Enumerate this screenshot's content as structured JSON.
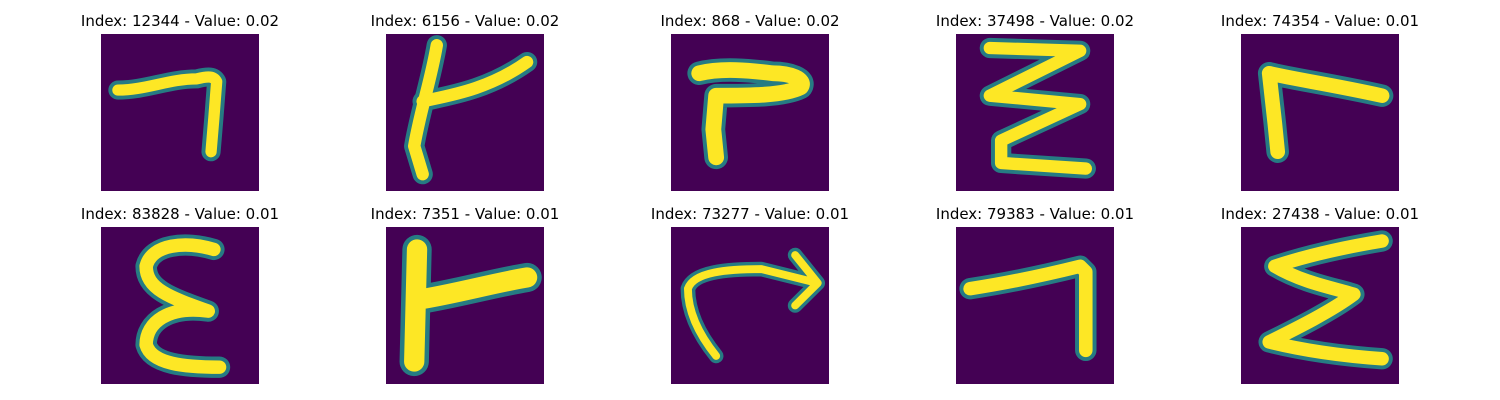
{
  "colors": {
    "background": "#440154",
    "glow": "#21918c",
    "glow_mid": "#5ec962",
    "stroke_core": "#fde725"
  },
  "samples": [
    {
      "caption": "Index: 12344 - Value: 0.02",
      "glyph": "seven-like stroke"
    },
    {
      "caption": "Index: 6156 - Value: 0.02",
      "glyph": "rotated t-like stroke"
    },
    {
      "caption": "Index: 868 - Value: 0.02",
      "glyph": "hooked r-like stroke"
    },
    {
      "caption": "Index: 37498 - Value: 0.02",
      "glyph": "zigzag stroke"
    },
    {
      "caption": "Index: 74354 - Value: 0.01",
      "glyph": "r-like stroke"
    },
    {
      "caption": "Index: 83828 - Value: 0.01",
      "glyph": "epsilon-like stroke"
    },
    {
      "caption": "Index: 7351 - Value: 0.01",
      "glyph": "t-like block stroke"
    },
    {
      "caption": "Index: 73277 - Value: 0.01",
      "glyph": "arrow-like stroke"
    },
    {
      "caption": "Index: 79383 - Value: 0.01",
      "glyph": "seven-like stroke"
    },
    {
      "caption": "Index: 27438 - Value: 0.01",
      "glyph": "z-like stroke"
    }
  ]
}
